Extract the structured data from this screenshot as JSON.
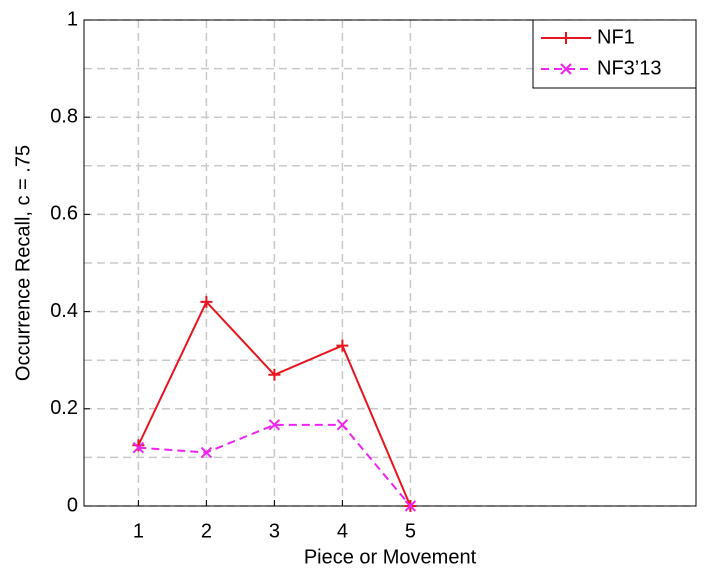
{
  "chart_data": {
    "type": "line",
    "xlabel": "Piece or Movement",
    "ylabel": "Occurrence Recall, c = .75",
    "x": [
      1,
      2,
      3,
      4,
      5
    ],
    "series": [
      {
        "name": "NF1",
        "color": "#e8141e",
        "marker": "+",
        "dash": false,
        "values": [
          0.125,
          0.42,
          0.27,
          0.33,
          0
        ]
      },
      {
        "name": "NF3’13",
        "color": "#f024f0",
        "marker": "x",
        "dash": true,
        "values": [
          0.12,
          0.11,
          0.167,
          0.167,
          0
        ]
      }
    ],
    "xlim": [
      0.2,
      9.2
    ],
    "xticks": [
      1,
      2,
      3,
      4,
      5
    ],
    "ylim": [
      0,
      1
    ],
    "yticks": [
      0,
      0.2,
      0.4,
      0.6,
      0.8,
      1
    ],
    "yminorticks": [
      0.1,
      0.3,
      0.5,
      0.7,
      0.9
    ],
    "grid": true,
    "legend": "upper right"
  }
}
